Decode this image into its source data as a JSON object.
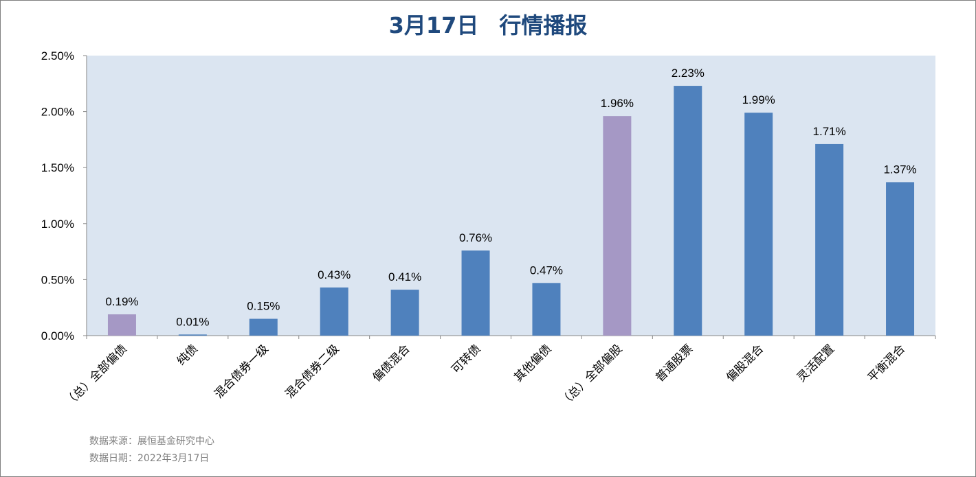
{
  "header": {
    "date": "3月17日",
    "subtitle": "行情播报"
  },
  "colors": {
    "title": "#1f497d",
    "plot_bg": "#dbe5f1",
    "bar_default": "#4f81bd",
    "bar_total": "#a598c5"
  },
  "chart_data": {
    "type": "bar",
    "title": "3月17日 行情播报",
    "categories": [
      "（总）全部偏债",
      "纯债",
      "混合债券一级",
      "混合债券二级",
      "偏债混合",
      "可转债",
      "其他偏债",
      "（总）全部偏股",
      "普通股票",
      "偏股混合",
      "灵活配置",
      "平衡混合"
    ],
    "values": [
      0.19,
      0.01,
      0.15,
      0.43,
      0.41,
      0.76,
      0.47,
      1.96,
      2.23,
      1.99,
      1.71,
      1.37
    ],
    "value_labels": [
      "0.19%",
      "0.01%",
      "0.15%",
      "0.43%",
      "0.41%",
      "0.76%",
      "0.47%",
      "1.96%",
      "2.23%",
      "1.99%",
      "1.71%",
      "1.37%"
    ],
    "highlight": [
      0,
      7
    ],
    "ylim": [
      0,
      2.5
    ],
    "yticks": [
      0,
      0.5,
      1.0,
      1.5,
      2.0,
      2.5
    ],
    "ytick_labels": [
      "0.00%",
      "0.50%",
      "1.00%",
      "1.50%",
      "2.00%",
      "2.50%"
    ],
    "xlabel": "",
    "ylabel": "",
    "grid": false,
    "legend": "none"
  },
  "footer": {
    "source": "数据来源：展恒基金研究中心",
    "date": "数据日期：2022年3月17日"
  }
}
